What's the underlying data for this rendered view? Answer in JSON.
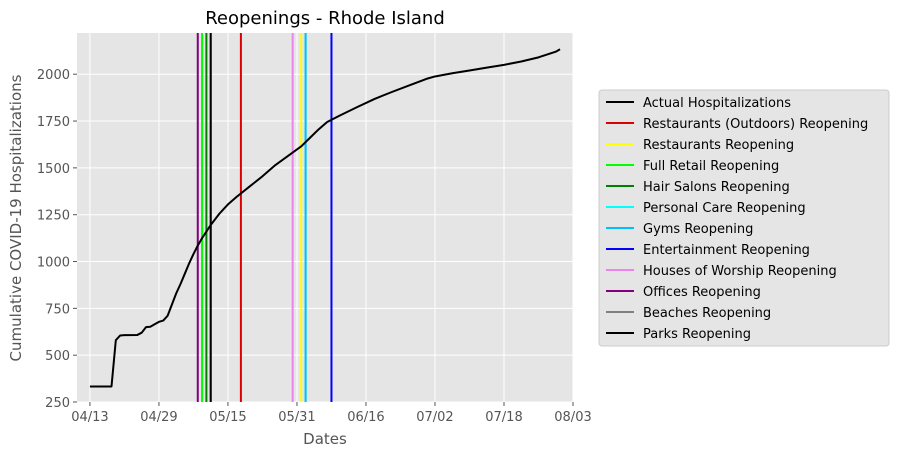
{
  "chart_data": {
    "type": "line",
    "title": "Reopenings - Rhode Island",
    "xlabel": "Dates",
    "ylabel": "Cumulative COVID-19 Hospitalizations",
    "xlim": [
      "2020-04-10",
      "2020-08-03"
    ],
    "ylim": [
      250,
      2220
    ],
    "x_ticks": [
      {
        "date": "2020-04-13",
        "label": "04/13"
      },
      {
        "date": "2020-04-29",
        "label": "04/29"
      },
      {
        "date": "2020-05-15",
        "label": "05/15"
      },
      {
        "date": "2020-05-31",
        "label": "05/31"
      },
      {
        "date": "2020-06-16",
        "label": "06/16"
      },
      {
        "date": "2020-07-02",
        "label": "07/02"
      },
      {
        "date": "2020-07-18",
        "label": "07/18"
      },
      {
        "date": "2020-08-03",
        "label": "08/03"
      }
    ],
    "y_ticks": [
      250,
      500,
      750,
      1000,
      1250,
      1500,
      1750,
      2000
    ],
    "grid": true,
    "legend_position": "right",
    "series": [
      {
        "name": "Actual Hospitalizations",
        "color": "#000000",
        "points": [
          [
            "2020-04-13",
            333
          ],
          [
            "2020-04-18",
            333
          ],
          [
            "2020-04-19",
            580
          ],
          [
            "2020-04-20",
            605
          ],
          [
            "2020-04-21",
            607
          ],
          [
            "2020-04-24",
            608
          ],
          [
            "2020-04-25",
            620
          ],
          [
            "2020-04-26",
            650
          ],
          [
            "2020-04-27",
            652
          ],
          [
            "2020-04-28",
            665
          ],
          [
            "2020-04-29",
            678
          ],
          [
            "2020-04-30",
            685
          ],
          [
            "2020-05-01",
            710
          ],
          [
            "2020-05-02",
            770
          ],
          [
            "2020-05-03",
            830
          ],
          [
            "2020-05-04",
            880
          ],
          [
            "2020-05-05",
            935
          ],
          [
            "2020-05-06",
            990
          ],
          [
            "2020-05-07",
            1040
          ],
          [
            "2020-05-08",
            1085
          ],
          [
            "2020-05-09",
            1125
          ],
          [
            "2020-05-10",
            1160
          ],
          [
            "2020-05-11",
            1195
          ],
          [
            "2020-05-12",
            1225
          ],
          [
            "2020-05-13",
            1255
          ],
          [
            "2020-05-14",
            1280
          ],
          [
            "2020-05-15",
            1305
          ],
          [
            "2020-05-17",
            1345
          ],
          [
            "2020-05-20",
            1400
          ],
          [
            "2020-05-23",
            1455
          ],
          [
            "2020-05-26",
            1515
          ],
          [
            "2020-05-29",
            1565
          ],
          [
            "2020-06-01",
            1615
          ],
          [
            "2020-06-03",
            1660
          ],
          [
            "2020-06-05",
            1705
          ],
          [
            "2020-06-07",
            1745
          ],
          [
            "2020-06-10",
            1780
          ],
          [
            "2020-06-14",
            1825
          ],
          [
            "2020-06-18",
            1868
          ],
          [
            "2020-06-22",
            1905
          ],
          [
            "2020-06-26",
            1940
          ],
          [
            "2020-06-30",
            1975
          ],
          [
            "2020-07-02",
            1988
          ],
          [
            "2020-07-06",
            2005
          ],
          [
            "2020-07-10",
            2020
          ],
          [
            "2020-07-14",
            2035
          ],
          [
            "2020-07-18",
            2050
          ],
          [
            "2020-07-22",
            2068
          ],
          [
            "2020-07-26",
            2090
          ],
          [
            "2020-07-30",
            2120
          ],
          [
            "2020-07-31",
            2133
          ]
        ]
      }
    ],
    "reopenings": [
      {
        "name": "Restaurants (Outdoors) Reopening",
        "color": "#dd0000",
        "date": "2020-05-18"
      },
      {
        "name": "Restaurants Reopening",
        "color": "#ffff00",
        "date": "2020-06-01"
      },
      {
        "name": "Full Retail Reopening",
        "color": "#00ff00",
        "date": "2020-05-09"
      },
      {
        "name": "Hair Salons Reopening",
        "color": "#008000",
        "date": "2020-05-10"
      },
      {
        "name": "Personal Care Reopening",
        "color": "#00ffff",
        "date": "2020-06-02"
      },
      {
        "name": "Gyms Reopening",
        "color": "#00bfff",
        "date": "2020-06-02"
      },
      {
        "name": "Entertainment Reopening",
        "color": "#0000ff",
        "date": "2020-06-08"
      },
      {
        "name": "Houses of Worship Reopening",
        "color": "#ee82ee",
        "date": "2020-05-30"
      },
      {
        "name": "Offices Reopening",
        "color": "#800080",
        "date": "2020-05-08"
      },
      {
        "name": "Beaches Reopening",
        "color": "#808080",
        "date": "2020-05-11"
      },
      {
        "name": "Parks Reopening",
        "color": "#000000",
        "date": "2020-05-11"
      }
    ]
  }
}
